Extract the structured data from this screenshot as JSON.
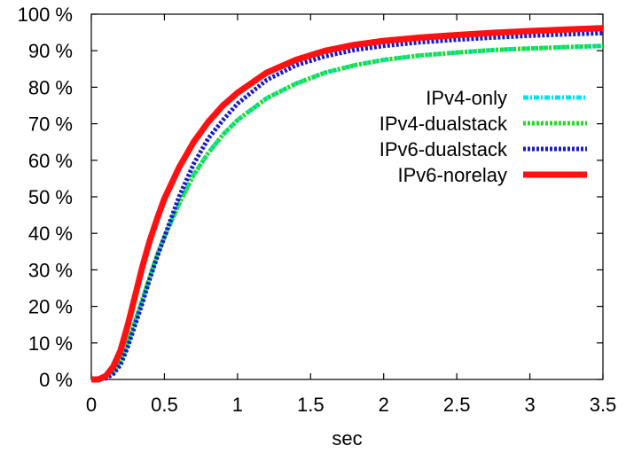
{
  "chart_data": {
    "type": "line",
    "title": "",
    "xlabel": "sec",
    "ylabel": "",
    "xlim": [
      0,
      3.5
    ],
    "ylim": [
      0,
      100
    ],
    "x_ticks": [
      "0",
      "0.5",
      "1",
      "1.5",
      "2",
      "2.5",
      "3",
      "3.5"
    ],
    "y_ticks": [
      "0 %",
      "10 %",
      "20 %",
      "30 %",
      "40 %",
      "50 %",
      "60 %",
      "70 %",
      "80 %",
      "90 %",
      "100 %"
    ],
    "legend_position": "right",
    "grid": false,
    "x": [
      0,
      0.05,
      0.1,
      0.15,
      0.2,
      0.25,
      0.3,
      0.35,
      0.4,
      0.45,
      0.5,
      0.6,
      0.7,
      0.8,
      0.9,
      1.0,
      1.2,
      1.4,
      1.6,
      1.8,
      2.0,
      2.25,
      2.5,
      2.75,
      3.0,
      3.25,
      3.5
    ],
    "series": [
      {
        "name": "IPv4-only",
        "color": "#00e5ee",
        "style": "dash-dot",
        "values": [
          0,
          0,
          0.5,
          2,
          5,
          10,
          16,
          22,
          28,
          34,
          39,
          48,
          56,
          62,
          67,
          71,
          77,
          81,
          84,
          86,
          87.5,
          88.7,
          89.5,
          90.2,
          90.6,
          91,
          91.3
        ]
      },
      {
        "name": "IPv4-dualstack",
        "color": "#22dd22",
        "style": "dotted",
        "values": [
          0,
          0,
          0.5,
          2,
          5,
          10,
          16,
          22,
          28,
          34,
          39,
          48,
          56,
          62,
          67,
          71,
          77,
          81,
          84,
          86,
          87.5,
          88.7,
          89.5,
          90.2,
          90.6,
          91,
          91.3
        ]
      },
      {
        "name": "IPv6-dualstack",
        "color": "#1a1acc",
        "style": "dotted",
        "values": [
          0,
          0,
          0.3,
          1.5,
          4,
          9,
          15,
          21,
          27.5,
          33.5,
          39,
          50,
          59,
          66,
          71,
          75.5,
          82,
          86,
          88.5,
          90.2,
          91.3,
          92.3,
          93,
          93.6,
          94.1,
          94.5,
          94.8
        ]
      },
      {
        "name": "IPv6-norelay",
        "color": "#ff1111",
        "style": "solid",
        "values": [
          0,
          0,
          1,
          3.5,
          8,
          15,
          23,
          31,
          38,
          44,
          49.5,
          58,
          65,
          70.5,
          75,
          78.5,
          84,
          87.5,
          90,
          91.6,
          92.7,
          93.6,
          94.3,
          94.9,
          95.4,
          95.8,
          96.2
        ]
      }
    ]
  }
}
